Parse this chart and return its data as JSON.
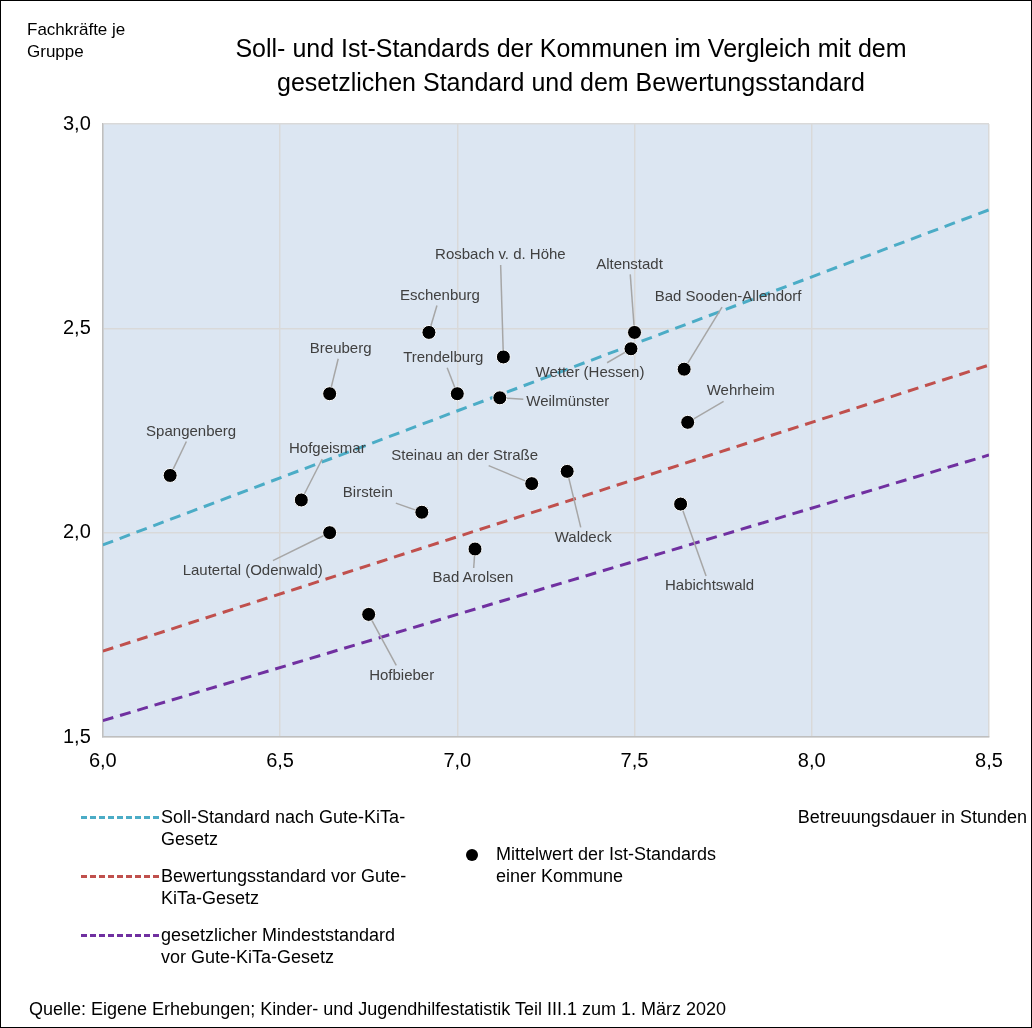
{
  "chart_data": {
    "type": "scatter",
    "title": "Soll- und Ist-Standards der Kommunen im Vergleich mit dem gesetzlichen Standard und dem Bewertungsstandard",
    "xlabel": "Betreuungsdauer in Stunden",
    "ylabel": "Fachkräfte je Gruppe",
    "xlim": [
      6,
      8.5
    ],
    "ylim": [
      1.5,
      3
    ],
    "xticks": [
      {
        "value": 6,
        "label": "6,0"
      },
      {
        "value": 6.5,
        "label": "6,5"
      },
      {
        "value": 7,
        "label": "7,0"
      },
      {
        "value": 7.5,
        "label": "7,5"
      },
      {
        "value": 8,
        "label": "8,0"
      },
      {
        "value": 8.5,
        "label": "8,5"
      }
    ],
    "yticks": [
      {
        "value": 1.5,
        "label": "1,5"
      },
      {
        "value": 2,
        "label": "2,0"
      },
      {
        "value": 2.5,
        "label": "2,5"
      },
      {
        "value": 3,
        "label": "3,0"
      }
    ],
    "grid": true,
    "legend": "bottom",
    "series": [
      {
        "name": "Soll-Standard nach Gute-KiTa-Gesetz",
        "type": "line",
        "line_style": "dashed",
        "color": "#4bacc6",
        "x": [
          6,
          8.5
        ],
        "values": [
          1.97,
          2.79
        ]
      },
      {
        "name": "Bewertungsstandard vor Gute-KiTa-Gesetz",
        "type": "line",
        "line_style": "dashed",
        "color": "#c0504d",
        "x": [
          6,
          8.5
        ],
        "values": [
          1.71,
          2.41
        ]
      },
      {
        "name": "gesetzlicher Mindeststandard vor Gute-KiTa-Gesetz",
        "type": "line",
        "line_style": "dashed",
        "color": "#7030a0",
        "x": [
          6,
          8.5
        ],
        "values": [
          1.54,
          2.19
        ]
      },
      {
        "name": "Mittelwert der Ist-Standards einer Kommune",
        "type": "scatter",
        "marker": "circle",
        "color": "#000000",
        "x": [
          6.19,
          6.64,
          6.92,
          7.0,
          7.13,
          7.12,
          7.5,
          7.49,
          7.64,
          7.65,
          6.56,
          6.64,
          6.9,
          7.21,
          7.31,
          7.05,
          7.63,
          6.75
        ],
        "values": [
          2.14,
          2.34,
          2.49,
          2.34,
          2.43,
          2.33,
          2.49,
          2.45,
          2.4,
          2.27,
          2.08,
          2.0,
          2.05,
          2.12,
          2.15,
          1.96,
          2.07,
          1.8
        ]
      }
    ],
    "annotations": [
      {
        "text": "Spangenberg",
        "x": 6.19,
        "y": 2.14
      },
      {
        "text": "Breuberg",
        "x": 6.64,
        "y": 2.34
      },
      {
        "text": "Eschenburg",
        "x": 6.92,
        "y": 2.49
      },
      {
        "text": "Trendelburg",
        "x": 7.0,
        "y": 2.34
      },
      {
        "text": "Rosbach v. d. Höhe",
        "x": 7.13,
        "y": 2.43
      },
      {
        "text": "Weilmünster",
        "x": 7.12,
        "y": 2.33
      },
      {
        "text": "Altenstadt",
        "x": 7.5,
        "y": 2.49
      },
      {
        "text": "Wetter (Hessen)",
        "x": 7.49,
        "y": 2.45
      },
      {
        "text": "Bad Sooden-Allendorf",
        "x": 7.64,
        "y": 2.4
      },
      {
        "text": "Wehrheim",
        "x": 7.65,
        "y": 2.27
      },
      {
        "text": "Hofgeismar",
        "x": 6.56,
        "y": 2.08
      },
      {
        "text": "Lautertal (Odenwald)",
        "x": 6.64,
        "y": 2.0
      },
      {
        "text": "Birstein",
        "x": 6.9,
        "y": 2.05
      },
      {
        "text": "Steinau an der Straße",
        "x": 7.21,
        "y": 2.12
      },
      {
        "text": "Waldeck",
        "x": 7.31,
        "y": 2.15
      },
      {
        "text": "Bad Arolsen",
        "x": 7.05,
        "y": 1.96
      },
      {
        "text": "Habichtswald",
        "x": 7.63,
        "y": 2.07
      },
      {
        "text": "Hofbieber",
        "x": 6.75,
        "y": 1.8
      },
      "Quelle: Eigene Erhebungen; Kinder- und Jugendhilfestatistik Teil III.1 zum 1. März 2020"
    ]
  }
}
